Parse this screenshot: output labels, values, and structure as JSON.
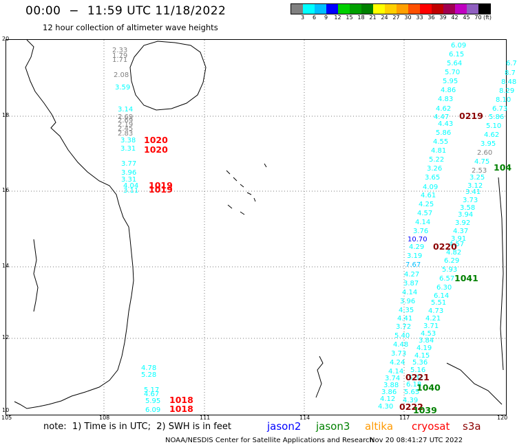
{
  "header": {
    "title": "00:00  −  11:59 UTC 11/18/2022",
    "subtitle": "12 hour collection of altimeter wave heights"
  },
  "legend": {
    "unit": "(ft)",
    "colors": [
      "#808080",
      "#00ffff",
      "#00bfff",
      "#0000ff",
      "#00d000",
      "#00a000",
      "#008000",
      "#ffff00",
      "#ffd000",
      "#ffa000",
      "#ff5000",
      "#ff0000",
      "#c00000",
      "#a00050",
      "#c000c0",
      "#9060c0",
      "#000000"
    ],
    "ticks": [
      "3",
      "6",
      "9",
      "12",
      "15",
      "18",
      "21",
      "24",
      "27",
      "30",
      "33",
      "36",
      "39",
      "42",
      "45",
      "70"
    ]
  },
  "axes": {
    "lat_labels": [
      "20",
      "18",
      "16",
      "14",
      "12",
      "10"
    ],
    "lon_labels": [
      "105",
      "108",
      "111",
      "114",
      "117",
      "120"
    ]
  },
  "tracks": {
    "left": [
      {
        "v": "2.33",
        "c": "#808080"
      },
      {
        "v": "1.79",
        "c": "#808080"
      },
      {
        "v": "1.71",
        "c": "#808080"
      },
      {
        "v": "2.08",
        "c": "#808080"
      },
      {
        "v": "3.59",
        "c": "#00ffff"
      },
      {
        "v": "3.14",
        "c": "#00ffff"
      },
      {
        "v": "2.69",
        "c": "#808080"
      },
      {
        "v": "2.69",
        "c": "#808080"
      },
      {
        "v": "2.19",
        "c": "#808080"
      },
      {
        "v": "2.45",
        "c": "#808080"
      },
      {
        "v": "2.83",
        "c": "#808080"
      },
      {
        "v": "3.38",
        "c": "#00ffff"
      },
      {
        "v": "3.31",
        "c": "#00ffff"
      },
      {
        "v": "3.77",
        "c": "#00ffff"
      },
      {
        "v": "3.96",
        "c": "#00ffff"
      },
      {
        "v": "3.31",
        "c": "#00ffff"
      },
      {
        "v": "4.04",
        "c": "#00ffff"
      },
      {
        "v": "3.11",
        "c": "#00ffff"
      },
      {
        "v": "4.78",
        "c": "#00ffff"
      },
      {
        "v": "5.28",
        "c": "#00ffff"
      },
      {
        "v": "5.17",
        "c": "#00ffff"
      },
      {
        "v": "4.67",
        "c": "#00ffff"
      },
      {
        "v": "5.95",
        "c": "#00ffff"
      },
      {
        "v": "6.09",
        "c": "#00ffff"
      }
    ],
    "middle": [
      {
        "v": "6.09",
        "c": "#00ffff"
      },
      {
        "v": "6.15",
        "c": "#00ffff"
      },
      {
        "v": "5.64",
        "c": "#00ffff"
      },
      {
        "v": "5.70",
        "c": "#00ffff"
      },
      {
        "v": "5.95",
        "c": "#00ffff"
      },
      {
        "v": "4.86",
        "c": "#00ffff"
      },
      {
        "v": "4.83",
        "c": "#00ffff"
      },
      {
        "v": "4.62",
        "c": "#00ffff"
      },
      {
        "v": "4.47",
        "c": "#00ffff"
      },
      {
        "v": "4.43",
        "c": "#00ffff"
      },
      {
        "v": "5.86",
        "c": "#00ffff"
      },
      {
        "v": "4.55",
        "c": "#00ffff"
      },
      {
        "v": "4.81",
        "c": "#00ffff"
      },
      {
        "v": "5.22",
        "c": "#00ffff"
      },
      {
        "v": "3.26",
        "c": "#00ffff"
      },
      {
        "v": "3.65",
        "c": "#00ffff"
      },
      {
        "v": "4.09",
        "c": "#00ffff"
      },
      {
        "v": "4.61",
        "c": "#00ffff"
      },
      {
        "v": "4.25",
        "c": "#00ffff"
      },
      {
        "v": "4.57",
        "c": "#00ffff"
      },
      {
        "v": "4.14",
        "c": "#00ffff"
      },
      {
        "v": "3.76",
        "c": "#00ffff"
      },
      {
        "v": "10.70",
        "c": "#0000ff"
      },
      {
        "v": "4.29",
        "c": "#00ffff"
      },
      {
        "v": "3.19",
        "c": "#00ffff"
      },
      {
        "v": "7.67",
        "c": "#00bfff"
      },
      {
        "v": "4.27",
        "c": "#00ffff"
      },
      {
        "v": "3.87",
        "c": "#00ffff"
      },
      {
        "v": "4.14",
        "c": "#00ffff"
      },
      {
        "v": "3.96",
        "c": "#00ffff"
      },
      {
        "v": "4.35",
        "c": "#00ffff"
      },
      {
        "v": "4.41",
        "c": "#00ffff"
      },
      {
        "v": "3.72",
        "c": "#00ffff"
      },
      {
        "v": "5.40",
        "c": "#00ffff"
      },
      {
        "v": "4.48",
        "c": "#00ffff"
      },
      {
        "v": "3.73",
        "c": "#00ffff"
      },
      {
        "v": "4.24",
        "c": "#00ffff"
      },
      {
        "v": "4.14",
        "c": "#00ffff"
      },
      {
        "v": "3.74",
        "c": "#00ffff"
      },
      {
        "v": "3.88",
        "c": "#00ffff"
      },
      {
        "v": "3.86",
        "c": "#00ffff"
      },
      {
        "v": "4.12",
        "c": "#00ffff"
      },
      {
        "v": "4.30",
        "c": "#00ffff"
      }
    ],
    "right": [
      {
        "v": "6.7",
        "c": "#00ffff"
      },
      {
        "v": "8.7",
        "c": "#00ffff"
      },
      {
        "v": "8.48",
        "c": "#00ffff"
      },
      {
        "v": "8.29",
        "c": "#00ffff"
      },
      {
        "v": "8.10",
        "c": "#00ffff"
      },
      {
        "v": "6.73",
        "c": "#00ffff"
      },
      {
        "v": "5.86",
        "c": "#00ffff"
      },
      {
        "v": "5.10",
        "c": "#00ffff"
      },
      {
        "v": "4.62",
        "c": "#00ffff"
      },
      {
        "v": "3.95",
        "c": "#00ffff"
      },
      {
        "v": "2.60",
        "c": "#808080"
      },
      {
        "v": "4.75",
        "c": "#00ffff"
      },
      {
        "v": "2.53",
        "c": "#808080"
      },
      {
        "v": "3.25",
        "c": "#00ffff"
      },
      {
        "v": "3.12",
        "c": "#00ffff"
      },
      {
        "v": "3.41",
        "c": "#00ffff"
      },
      {
        "v": "3.73",
        "c": "#00ffff"
      },
      {
        "v": "3.58",
        "c": "#00ffff"
      },
      {
        "v": "3.94",
        "c": "#00ffff"
      },
      {
        "v": "3.92",
        "c": "#00ffff"
      },
      {
        "v": "4.37",
        "c": "#00ffff"
      },
      {
        "v": "3.91",
        "c": "#00ffff"
      },
      {
        "v": "4.57",
        "c": "#00ffff"
      },
      {
        "v": "4.82",
        "c": "#00ffff"
      },
      {
        "v": "6.29",
        "c": "#00ffff"
      },
      {
        "v": "5.93",
        "c": "#00ffff"
      },
      {
        "v": "6.57",
        "c": "#00ffff"
      },
      {
        "v": "6.30",
        "c": "#00ffff"
      },
      {
        "v": "6.14",
        "c": "#00ffff"
      },
      {
        "v": "5.51",
        "c": "#00ffff"
      },
      {
        "v": "4.73",
        "c": "#00ffff"
      },
      {
        "v": "4.21",
        "c": "#00ffff"
      },
      {
        "v": "3.71",
        "c": "#00ffff"
      },
      {
        "v": "4.53",
        "c": "#00ffff"
      },
      {
        "v": "3.84",
        "c": "#00ffff"
      },
      {
        "v": "4.19",
        "c": "#00ffff"
      },
      {
        "v": "4.15",
        "c": "#00ffff"
      },
      {
        "v": "5.36",
        "c": "#00ffff"
      },
      {
        "v": "5.16",
        "c": "#00ffff"
      },
      {
        "v": "5.32",
        "c": "#00ffff"
      },
      {
        "v": "6.18",
        "c": "#00ffff"
      },
      {
        "v": "5.65",
        "c": "#00ffff"
      },
      {
        "v": "4.39",
        "c": "#00ffff"
      }
    ]
  },
  "pass_codes": [
    {
      "v": "1020",
      "c": "#ff0000"
    },
    {
      "v": "1020",
      "c": "#ff0000"
    },
    {
      "v": "1019",
      "c": "#ff0000"
    },
    {
      "v": "1019",
      "c": "#ff0000"
    },
    {
      "v": "1018",
      "c": "#ff0000"
    },
    {
      "v": "1018",
      "c": "#ff0000"
    },
    {
      "v": "0219",
      "c": "#8b0000"
    },
    {
      "v": "0220",
      "c": "#8b0000"
    },
    {
      "v": "0221",
      "c": "#8b0000"
    },
    {
      "v": "0222",
      "c": "#8b0000"
    },
    {
      "v": "104",
      "c": "#008000"
    },
    {
      "v": "1041",
      "c": "#008000"
    },
    {
      "v": "1040",
      "c": "#008000"
    },
    {
      "v": "1039",
      "c": "#008000"
    }
  ],
  "footer": {
    "note": "note:  1) Time is in UTC;  2) SWH is in feet",
    "missions": [
      {
        "name": "jason2",
        "color": "#0000ff"
      },
      {
        "name": "jason3",
        "color": "#008000"
      },
      {
        "name": "altika",
        "color": "#ff9900"
      },
      {
        "name": "cryosat",
        "color": "#ff0000"
      },
      {
        "name": "s3a",
        "color": "#8b0000"
      }
    ],
    "credit": "NOAA/NESDIS Center for Satellite Applications and Research",
    "timestamp": "Nov 20 08:41:27 UTC 2022"
  }
}
